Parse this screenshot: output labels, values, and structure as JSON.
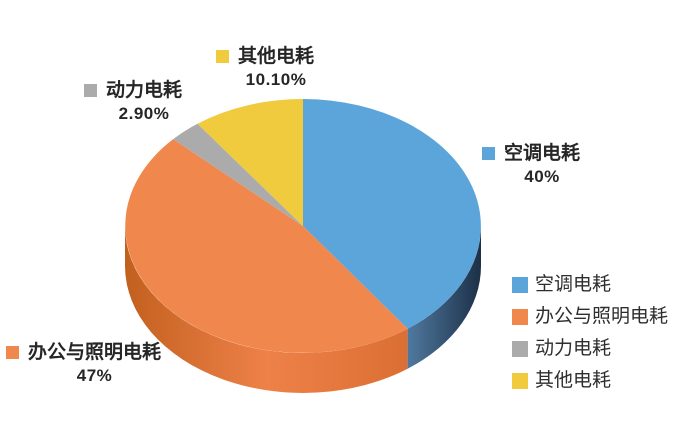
{
  "chart_data": {
    "type": "pie",
    "style": "3d-pie",
    "title": "",
    "legend_position": "right",
    "direction": "clockwise",
    "start_angle_deg": 0,
    "background": "#ffffff",
    "label_text_color": "#262626",
    "slices": [
      {
        "label": "空调电耗",
        "value": 40,
        "display": "40%",
        "color": "#5CA5DB",
        "side_colors": [
          "#50799F",
          "#1C3047"
        ]
      },
      {
        "label": "办公与照明电耗",
        "value": 47,
        "display": "47%",
        "color": "#F0874C",
        "side_colors": [
          "#C2601F",
          "#EE8148",
          "#DB6F33"
        ]
      },
      {
        "label": "动力电耗",
        "value": 2.9,
        "display": "2.90%",
        "color": "#ABABAB",
        "side_colors": []
      },
      {
        "label": "其他电耗",
        "value": 10.1,
        "display": "10.10%",
        "color": "#F0CB3E",
        "side_colors": []
      }
    ]
  }
}
